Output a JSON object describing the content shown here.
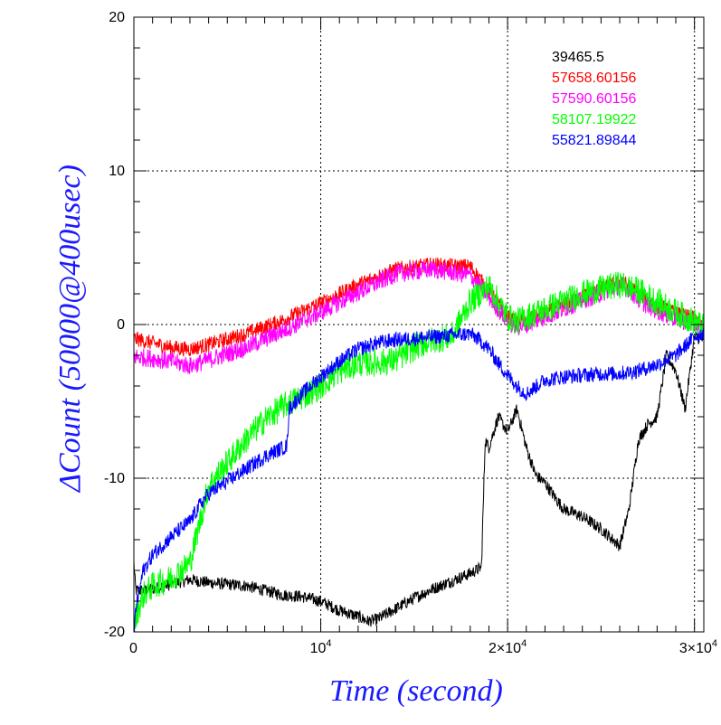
{
  "chart_data": {
    "type": "line",
    "xlabel": "Time (second)",
    "ylabel": "ΔCount (50000@400usec)",
    "xlim": [
      0,
      30500
    ],
    "ylim": [
      -20,
      20
    ],
    "grid": true,
    "legend_position": "top-right",
    "x_ticks": [
      {
        "value": 0,
        "base": "0",
        "exp": ""
      },
      {
        "value": 10000,
        "base": "10",
        "exp": "4"
      },
      {
        "value": 20000,
        "base": "2×10",
        "exp": "4"
      },
      {
        "value": 30000,
        "base": "3×10",
        "exp": "4"
      }
    ],
    "y_ticks": [
      {
        "value": 20,
        "label": "20"
      },
      {
        "value": 10,
        "label": "10"
      },
      {
        "value": 0,
        "label": "0"
      },
      {
        "value": -10,
        "label": "-10"
      },
      {
        "value": -20,
        "label": "-20"
      }
    ],
    "colors": {
      "axis": "#000000",
      "ylabel": "#1a1aff",
      "xlabel": "#1a1aff"
    },
    "series": [
      {
        "name": "39465.5",
        "color": "#000000",
        "noise": 0.4,
        "x": [
          0,
          100,
          500,
          1000,
          2000,
          3000,
          4000,
          6000,
          8000,
          9000,
          10000,
          11000,
          12000,
          12500,
          13000,
          14000,
          15000,
          16000,
          17000,
          18000,
          18600,
          18800,
          19000,
          19500,
          20000,
          20500,
          21000,
          21500,
          22000,
          22500,
          23000,
          24000,
          25000,
          26000,
          26500,
          27000,
          27500,
          28000,
          28500,
          29000,
          29500,
          30000,
          30500
        ],
        "y": [
          -15.5,
          -17.3,
          -17.3,
          -17.2,
          -16.9,
          -16.6,
          -16.8,
          -17.0,
          -17.6,
          -17.7,
          -18.0,
          -18.6,
          -19.0,
          -19.3,
          -19.2,
          -18.5,
          -17.8,
          -17.2,
          -16.7,
          -16.2,
          -15.8,
          -7.5,
          -8.0,
          -6.0,
          -7.0,
          -5.5,
          -8.0,
          -9.8,
          -10.3,
          -11.2,
          -12.0,
          -12.5,
          -13.3,
          -14.4,
          -12.0,
          -7.5,
          -6.5,
          -6.0,
          -2.0,
          -3.0,
          -5.5,
          -0.8,
          -1.0
        ]
      },
      {
        "name": "57658.60156",
        "color": "#ff0000",
        "noise": 0.5,
        "x": [
          0,
          1000,
          2000,
          3000,
          4000,
          6000,
          8000,
          10000,
          12000,
          14000,
          16000,
          17000,
          18000,
          19000,
          20000,
          20500,
          21000,
          22000,
          23000,
          24000,
          25000,
          26000,
          26500,
          27000,
          28000,
          29000,
          30000,
          30500
        ],
        "y": [
          -0.9,
          -1.2,
          -1.5,
          -1.6,
          -1.3,
          -0.6,
          0.3,
          1.4,
          2.6,
          3.6,
          3.9,
          3.8,
          3.8,
          2.2,
          0.5,
          0.2,
          0.3,
          0.7,
          1.3,
          1.8,
          2.3,
          2.8,
          2.5,
          2.0,
          1.2,
          0.7,
          0.4,
          0.0
        ]
      },
      {
        "name": "57590.60156",
        "color": "#ff00ff",
        "noise": 0.6,
        "x": [
          0,
          1000,
          2000,
          3000,
          4000,
          6000,
          8000,
          10000,
          12000,
          14000,
          16000,
          17000,
          18000,
          19000,
          20000,
          20500,
          21000,
          22000,
          23000,
          24000,
          25000,
          26000,
          26500,
          27000,
          28000,
          29000,
          30000,
          30500
        ],
        "y": [
          -2.1,
          -2.2,
          -2.4,
          -2.7,
          -2.3,
          -1.5,
          -0.4,
          0.8,
          2.1,
          3.3,
          3.6,
          3.4,
          3.2,
          1.8,
          0.2,
          -0.2,
          0.0,
          0.5,
          1.0,
          1.6,
          2.0,
          2.6,
          2.3,
          1.6,
          0.9,
          0.4,
          0.0,
          -0.3
        ]
      },
      {
        "name": "58107.19922",
        "color": "#00ff00",
        "noise": 0.9,
        "x": [
          0,
          100,
          500,
          1000,
          2000,
          3000,
          4000,
          5000,
          6000,
          7000,
          8000,
          9000,
          10000,
          11000,
          12000,
          13000,
          14000,
          15000,
          16000,
          17000,
          18000,
          19000,
          20000,
          20500,
          21000,
          22000,
          23000,
          24000,
          25000,
          26000,
          27000,
          28000,
          29000,
          30000,
          30500
        ],
        "y": [
          -20.0,
          -19.0,
          -17.6,
          -17.0,
          -16.5,
          -15.5,
          -10.5,
          -9.0,
          -7.5,
          -6.2,
          -5.3,
          -4.7,
          -4.0,
          -3.0,
          -2.5,
          -2.5,
          -2.3,
          -1.5,
          -1.0,
          -0.8,
          1.5,
          2.5,
          0.5,
          0.2,
          0.5,
          1.0,
          1.5,
          2.0,
          2.3,
          2.6,
          2.2,
          1.5,
          0.8,
          0.2,
          -0.2
        ]
      },
      {
        "name": "55821.89844",
        "color": "#0000ff",
        "noise": 0.5,
        "x": [
          0,
          100,
          500,
          1000,
          2000,
          3000,
          3500,
          4000,
          5000,
          6000,
          7000,
          8000,
          8200,
          8300,
          9000,
          10000,
          11000,
          12000,
          13000,
          14000,
          15000,
          16000,
          17000,
          18000,
          18500,
          19000,
          19500,
          20000,
          20500,
          21000,
          22000,
          23000,
          24000,
          25000,
          26000,
          27000,
          28000,
          29000,
          30000,
          30500
        ],
        "y": [
          -20.5,
          -18.5,
          -16.0,
          -15.0,
          -13.8,
          -12.8,
          -11.8,
          -11.0,
          -10.2,
          -9.4,
          -8.6,
          -8.0,
          -7.9,
          -5.5,
          -4.5,
          -3.4,
          -2.4,
          -1.6,
          -1.2,
          -1.0,
          -0.9,
          -0.8,
          -0.7,
          -0.6,
          -1.0,
          -1.6,
          -2.5,
          -3.3,
          -4.0,
          -4.5,
          -3.6,
          -3.4,
          -3.3,
          -3.2,
          -3.2,
          -3.0,
          -2.6,
          -2.0,
          -0.8,
          -0.5
        ]
      }
    ]
  }
}
